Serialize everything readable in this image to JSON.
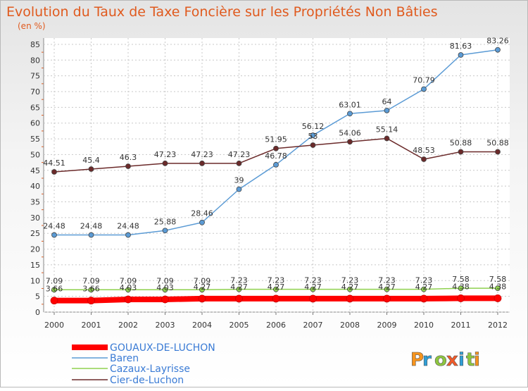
{
  "chart_data": {
    "type": "line",
    "title": "Evolution du Taux de Taxe Foncière sur les Propriétés Non Bâties",
    "ylabel": "(en %)",
    "xlabel": "",
    "x": [
      "2000",
      "2001",
      "2002",
      "2003",
      "2004",
      "2005",
      "2006",
      "2007",
      "2008",
      "2009",
      "2010",
      "2011",
      "2012"
    ],
    "ylim": [
      0,
      87
    ],
    "yticks": [
      0,
      5,
      10,
      15,
      20,
      25,
      30,
      35,
      40,
      45,
      50,
      55,
      60,
      65,
      70,
      75,
      80,
      85
    ],
    "grid": true,
    "legend_placement": "bottom-left",
    "series": [
      {
        "name": "GOUAUX-DE-LUCHON",
        "color": "#ff0000",
        "values": [
          3.66,
          3.66,
          4.03,
          4.03,
          4.27,
          4.27,
          4.27,
          4.27,
          4.27,
          4.27,
          4.27,
          4.38,
          4.38
        ],
        "labels": [
          "3.66",
          "3.66",
          "4.03",
          "4.03",
          "4.27",
          "4.27",
          "4.27",
          "4.27",
          "4.27",
          "4.27",
          "4.27",
          "4.38",
          "4.38"
        ]
      },
      {
        "name": "Baren",
        "color": "#5b9bd5",
        "values": [
          24.48,
          24.48,
          24.48,
          25.88,
          28.46,
          39,
          46.78,
          56.12,
          63.01,
          64,
          70.79,
          81.63,
          83.26
        ],
        "labels": [
          "24.48",
          "24.48",
          "24.48",
          "25.88",
          "28.46",
          "39",
          "46.78",
          "56.12",
          "63.01",
          "64",
          "70.79",
          "81.63",
          "83.26"
        ]
      },
      {
        "name": "Cazaux-Layrisse",
        "color": "#8fd14f",
        "values": [
          7.09,
          7.09,
          7.09,
          7.09,
          7.09,
          7.23,
          7.23,
          7.23,
          7.23,
          7.23,
          7.23,
          7.58,
          7.58
        ],
        "labels": [
          "7.09",
          "7.09",
          "7.09",
          "7.09",
          "7.09",
          "7.23",
          "7.23",
          "7.23",
          "7.23",
          "7.23",
          "7.23",
          "7.58",
          "7.58"
        ]
      },
      {
        "name": "Cier-de-Luchon",
        "color": "#6b2a2a",
        "values": [
          44.51,
          45.4,
          46.3,
          47.23,
          47.23,
          47.23,
          51.95,
          53,
          54.06,
          55.14,
          48.53,
          50.88,
          50.88
        ],
        "labels": [
          "44.51",
          "45.4",
          "46.3",
          "47.23",
          "47.23",
          "47.23",
          "51.95",
          "53",
          "54.06",
          "55.14",
          "48.53",
          "50.88",
          "50.88"
        ]
      }
    ]
  },
  "brand": {
    "letters": [
      "P",
      "r",
      "o",
      "x",
      "i",
      "t",
      "i"
    ],
    "colors": [
      "#f7941d",
      "#2e9fd8",
      "#8dc63f",
      "#f15a29",
      "#2e9fd8",
      "#8dc63f",
      "#f7941d"
    ]
  }
}
